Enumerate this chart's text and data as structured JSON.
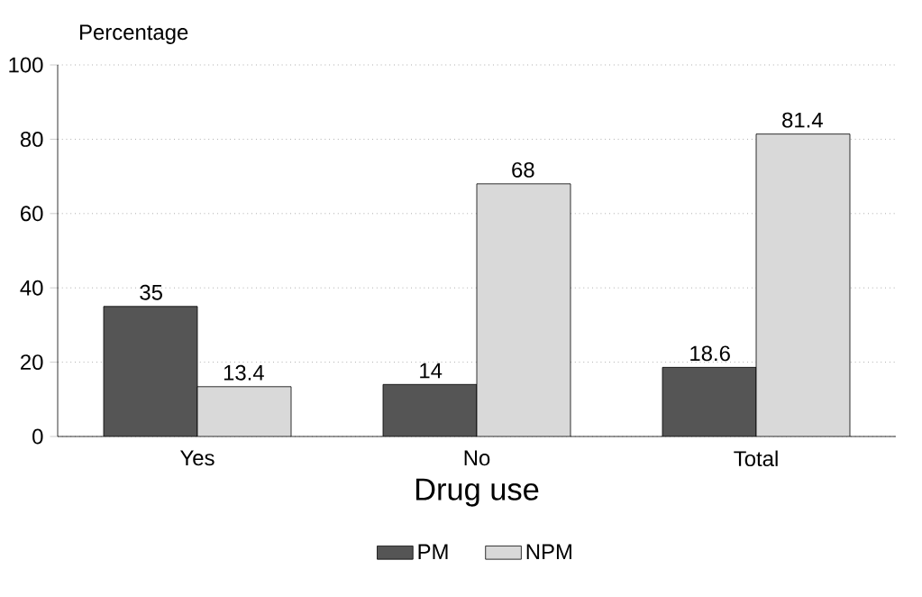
{
  "chart_data": {
    "type": "bar",
    "xlabel": "Drug use",
    "ylabel": "Percentage",
    "categories": [
      "Yes",
      "No",
      "Total"
    ],
    "series": [
      {
        "name": "PM",
        "color": "#555555",
        "values": [
          35,
          14,
          18.6
        ]
      },
      {
        "name": "NPM",
        "color": "#d9d9d9",
        "values": [
          13.4,
          68,
          81.4
        ]
      }
    ],
    "ylim": [
      0,
      100
    ],
    "yticks": [
      0,
      20,
      40,
      60,
      80,
      100
    ],
    "grid": "y",
    "legend": "bottom",
    "data_labels": true
  }
}
